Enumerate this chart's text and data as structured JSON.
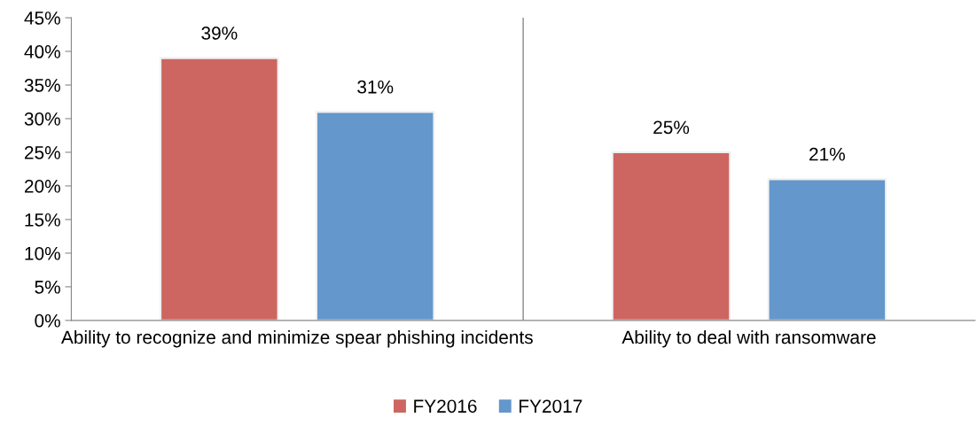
{
  "chart_data": {
    "type": "bar",
    "categories": [
      "Ability to recognize and minimize spear phishing incidents",
      "Ability to deal with ransomware"
    ],
    "series": [
      {
        "name": "FY2016",
        "color": "#cd6660",
        "values": [
          39,
          25
        ],
        "value_labels": [
          "39%",
          "25%"
        ]
      },
      {
        "name": "FY2017",
        "color": "#6497cb",
        "values": [
          31,
          21
        ],
        "value_labels": [
          "31%",
          "21%"
        ]
      }
    ],
    "ylim": [
      0,
      45
    ],
    "yticks": [
      {
        "value": 0,
        "label": "0%"
      },
      {
        "value": 5,
        "label": "5%"
      },
      {
        "value": 10,
        "label": "10%"
      },
      {
        "value": 15,
        "label": "15%"
      },
      {
        "value": 20,
        "label": "20%"
      },
      {
        "value": 25,
        "label": "25%"
      },
      {
        "value": 30,
        "label": "30%"
      },
      {
        "value": 35,
        "label": "35%"
      },
      {
        "value": 40,
        "label": "40%"
      },
      {
        "value": 45,
        "label": "45%"
      }
    ],
    "grid": "x",
    "legend": "bottom"
  }
}
